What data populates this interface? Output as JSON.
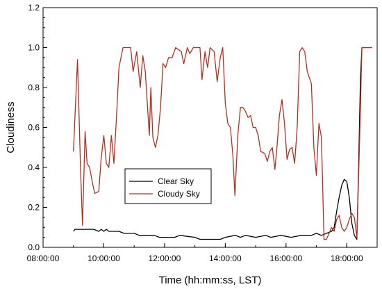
{
  "chart_data": {
    "type": "line",
    "xlabel": "Time (hh:mm:ss, LST)",
    "ylabel": "Cloudiness",
    "xlim": [
      "08:00:00",
      "19:00:00"
    ],
    "ylim": [
      0,
      1.2
    ],
    "x_ticks": [
      "08:00:00",
      "10:00:00",
      "12:00:00",
      "14:00:00",
      "16:00:00",
      "18:00:00"
    ],
    "y_ticks": [
      "0.0",
      "0.2",
      "0.4",
      "0.6",
      "0.8",
      "1.0",
      "1.2"
    ],
    "grid": false,
    "legend_position": "center-left",
    "series": [
      {
        "name": "Clear Sky",
        "color": "#000000",
        "points": [
          [
            "09:00:00",
            0.08
          ],
          [
            "09:03:00",
            0.09
          ],
          [
            "09:20:00",
            0.09
          ],
          [
            "09:40:00",
            0.09
          ],
          [
            "09:50:00",
            0.08
          ],
          [
            "09:55:00",
            0.09
          ],
          [
            "10:00:00",
            0.08
          ],
          [
            "10:05:00",
            0.09
          ],
          [
            "10:10:00",
            0.08
          ],
          [
            "10:30:00",
            0.08
          ],
          [
            "10:40:00",
            0.07
          ],
          [
            "11:00:00",
            0.07
          ],
          [
            "11:10:00",
            0.06
          ],
          [
            "11:40:00",
            0.06
          ],
          [
            "11:50:00",
            0.05
          ],
          [
            "12:20:00",
            0.05
          ],
          [
            "12:30:00",
            0.06
          ],
          [
            "13:00:00",
            0.05
          ],
          [
            "13:10:00",
            0.04
          ],
          [
            "13:50:00",
            0.04
          ],
          [
            "14:00:00",
            0.05
          ],
          [
            "14:20:00",
            0.06
          ],
          [
            "14:30:00",
            0.05
          ],
          [
            "14:40:00",
            0.06
          ],
          [
            "15:00:00",
            0.05
          ],
          [
            "15:20:00",
            0.06
          ],
          [
            "15:30:00",
            0.05
          ],
          [
            "15:50:00",
            0.06
          ],
          [
            "16:10:00",
            0.05
          ],
          [
            "16:30:00",
            0.06
          ],
          [
            "16:50:00",
            0.06
          ],
          [
            "17:00:00",
            0.07
          ],
          [
            "17:10:00",
            0.06
          ],
          [
            "17:20:00",
            0.07
          ],
          [
            "17:30:00",
            0.08
          ],
          [
            "17:35:00",
            0.1
          ],
          [
            "17:40:00",
            0.18
          ],
          [
            "17:45:00",
            0.25
          ],
          [
            "17:50:00",
            0.31
          ],
          [
            "17:55:00",
            0.34
          ],
          [
            "18:00:00",
            0.33
          ],
          [
            "18:05:00",
            0.25
          ],
          [
            "18:10:00",
            0.12
          ],
          [
            "18:15:00",
            0.06
          ],
          [
            "18:20:00",
            0.04
          ],
          [
            "18:23:00",
            0.35
          ],
          [
            "18:27:00",
            0.85
          ],
          [
            "18:30:00",
            1.0
          ],
          [
            "18:50:00",
            1.0
          ]
        ]
      },
      {
        "name": "Cloudy Sky",
        "color": "#b03020",
        "points": [
          [
            "09:00:00",
            0.48
          ],
          [
            "09:08:00",
            0.94
          ],
          [
            "09:14:00",
            0.4
          ],
          [
            "09:18:00",
            0.11
          ],
          [
            "09:23:00",
            0.58
          ],
          [
            "09:27:00",
            0.42
          ],
          [
            "09:32:00",
            0.4
          ],
          [
            "09:37:00",
            0.33
          ],
          [
            "09:42:00",
            0.27
          ],
          [
            "09:50:00",
            0.28
          ],
          [
            "09:55:00",
            0.45
          ],
          [
            "10:00:00",
            0.56
          ],
          [
            "10:05:00",
            0.42
          ],
          [
            "10:10:00",
            0.4
          ],
          [
            "10:15:00",
            0.56
          ],
          [
            "10:20:00",
            0.42
          ],
          [
            "10:25:00",
            0.65
          ],
          [
            "10:30:00",
            0.9
          ],
          [
            "10:38:00",
            1.0
          ],
          [
            "10:53:00",
            1.0
          ],
          [
            "10:58:00",
            0.88
          ],
          [
            "11:05:00",
            0.98
          ],
          [
            "11:12:00",
            0.8
          ],
          [
            "11:17:00",
            0.96
          ],
          [
            "11:22:00",
            0.88
          ],
          [
            "11:30:00",
            0.56
          ],
          [
            "11:33:00",
            0.8
          ],
          [
            "11:37:00",
            0.55
          ],
          [
            "11:42:00",
            0.5
          ],
          [
            "11:47:00",
            0.56
          ],
          [
            "11:52:00",
            0.7
          ],
          [
            "11:57:00",
            0.92
          ],
          [
            "12:02:00",
            0.9
          ],
          [
            "12:08:00",
            0.95
          ],
          [
            "12:15:00",
            0.95
          ],
          [
            "12:22:00",
            1.0
          ],
          [
            "12:33:00",
            0.98
          ],
          [
            "12:38:00",
            0.92
          ],
          [
            "12:45:00",
            1.0
          ],
          [
            "12:50:00",
            0.97
          ],
          [
            "12:57:00",
            1.0
          ],
          [
            "13:10:00",
            1.0
          ],
          [
            "13:14:00",
            0.84
          ],
          [
            "13:20:00",
            0.98
          ],
          [
            "13:25:00",
            0.9
          ],
          [
            "13:30:00",
            1.0
          ],
          [
            "13:38:00",
            0.98
          ],
          [
            "13:44:00",
            0.83
          ],
          [
            "13:50:00",
            0.95
          ],
          [
            "13:55:00",
            1.0
          ],
          [
            "14:00:00",
            0.72
          ],
          [
            "14:05:00",
            0.62
          ],
          [
            "14:10:00",
            0.6
          ],
          [
            "14:15:00",
            0.46
          ],
          [
            "14:19:00",
            0.26
          ],
          [
            "14:25:00",
            0.57
          ],
          [
            "14:30:00",
            0.7
          ],
          [
            "14:35:00",
            0.7
          ],
          [
            "14:40:00",
            0.68
          ],
          [
            "14:45:00",
            0.65
          ],
          [
            "14:50:00",
            0.66
          ],
          [
            "14:55:00",
            0.6
          ],
          [
            "15:00:00",
            0.6
          ],
          [
            "15:05:00",
            0.56
          ],
          [
            "15:10:00",
            0.48
          ],
          [
            "15:18:00",
            0.47
          ],
          [
            "15:23:00",
            0.43
          ],
          [
            "15:28:00",
            0.48
          ],
          [
            "15:33:00",
            0.5
          ],
          [
            "15:38:00",
            0.39
          ],
          [
            "15:42:00",
            0.5
          ],
          [
            "15:47:00",
            0.66
          ],
          [
            "15:52:00",
            0.74
          ],
          [
            "15:57:00",
            0.62
          ],
          [
            "16:02:00",
            0.44
          ],
          [
            "16:07:00",
            0.49
          ],
          [
            "16:12:00",
            0.5
          ],
          [
            "16:17:00",
            0.42
          ],
          [
            "16:22:00",
            0.6
          ],
          [
            "16:27:00",
            0.98
          ],
          [
            "16:32:00",
            1.0
          ],
          [
            "16:37:00",
            0.98
          ],
          [
            "16:42:00",
            0.88
          ],
          [
            "16:50:00",
            0.82
          ],
          [
            "16:55:00",
            0.5
          ],
          [
            "17:00:00",
            0.36
          ],
          [
            "17:05:00",
            0.62
          ],
          [
            "17:10:00",
            0.55
          ],
          [
            "17:15:00",
            0.04
          ],
          [
            "17:20:00",
            0.04
          ],
          [
            "17:25:00",
            0.07
          ],
          [
            "17:30:00",
            0.1
          ],
          [
            "17:35:00",
            0.08
          ],
          [
            "17:40:00",
            0.14
          ],
          [
            "17:45:00",
            0.16
          ],
          [
            "17:50:00",
            0.1
          ],
          [
            "17:55:00",
            0.08
          ],
          [
            "18:00:00",
            0.1
          ],
          [
            "18:05:00",
            0.14
          ],
          [
            "18:10:00",
            0.17
          ],
          [
            "18:15:00",
            0.15
          ],
          [
            "18:20:00",
            0.05
          ],
          [
            "18:25:00",
            0.5
          ],
          [
            "18:30:00",
            1.0
          ],
          [
            "18:50:00",
            1.0
          ]
        ]
      }
    ]
  }
}
